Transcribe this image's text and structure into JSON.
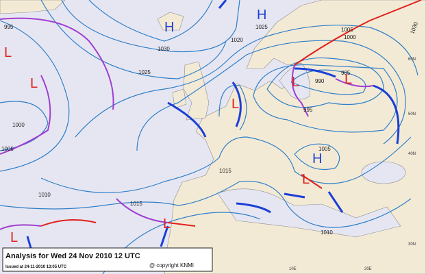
{
  "map": {
    "title": "Analysis for Wed 24 Nov 2010  12 UTC",
    "issued": "Issued at 24-11-2010  13:05 UTC",
    "copyright": "@ copyright KNMI",
    "isobar_labels": [
      "995",
      "1030",
      "1025",
      "1020",
      "1025",
      "1005",
      "1000",
      "1030",
      "985",
      "990",
      "995",
      "1000",
      "1005",
      "1005",
      "1015",
      "1015",
      "1010",
      "1010"
    ],
    "highs": [
      "H",
      "H",
      "H"
    ],
    "lows": [
      "L",
      "L",
      "L",
      "L",
      "L",
      "L",
      "L",
      "L"
    ],
    "grid_labels": [
      "60N",
      "50N",
      "40N",
      "30N",
      "10E",
      "20E"
    ]
  }
}
